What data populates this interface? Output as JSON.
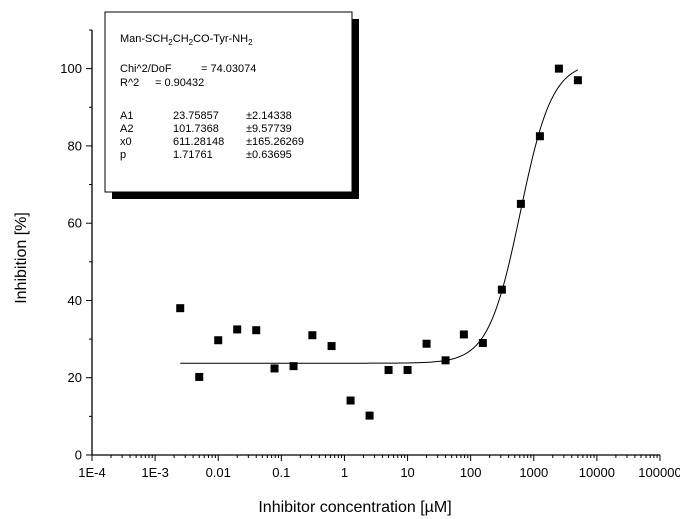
{
  "chart_data": {
    "type": "scatter",
    "x_scale": "log",
    "xlabel": "Inhibitor concentration [µM]",
    "ylabel": "Inhibition [%]",
    "xlim": [
      0.0001,
      100000
    ],
    "ylim": [
      0,
      110
    ],
    "x_ticks": [
      {
        "value": 0.0001,
        "label": "1E-4"
      },
      {
        "value": 0.001,
        "label": "1E-3"
      },
      {
        "value": 0.01,
        "label": "0.01"
      },
      {
        "value": 0.1,
        "label": "0.1"
      },
      {
        "value": 1,
        "label": "1"
      },
      {
        "value": 10,
        "label": "10"
      },
      {
        "value": 100,
        "label": "100"
      },
      {
        "value": 1000,
        "label": "1000"
      },
      {
        "value": 10000,
        "label": "10000"
      },
      {
        "value": 100000,
        "label": "100000"
      }
    ],
    "y_ticks": [
      {
        "value": 0,
        "label": "0"
      },
      {
        "value": 20,
        "label": "20"
      },
      {
        "value": 40,
        "label": "40"
      },
      {
        "value": 60,
        "label": "60"
      },
      {
        "value": 80,
        "label": "80"
      },
      {
        "value": 100,
        "label": "100"
      }
    ],
    "points": [
      {
        "x": 0.0025,
        "y": 38.0
      },
      {
        "x": 0.005,
        "y": 20.2
      },
      {
        "x": 0.01,
        "y": 29.7
      },
      {
        "x": 0.02,
        "y": 32.5
      },
      {
        "x": 0.04,
        "y": 32.3
      },
      {
        "x": 0.078,
        "y": 22.4
      },
      {
        "x": 0.156,
        "y": 23.0
      },
      {
        "x": 0.31,
        "y": 31.0
      },
      {
        "x": 0.625,
        "y": 28.2
      },
      {
        "x": 1.25,
        "y": 14.1
      },
      {
        "x": 2.5,
        "y": 10.2
      },
      {
        "x": 5,
        "y": 22.0
      },
      {
        "x": 10,
        "y": 22.0
      },
      {
        "x": 20,
        "y": 28.8
      },
      {
        "x": 40,
        "y": 24.5
      },
      {
        "x": 78,
        "y": 31.2
      },
      {
        "x": 156,
        "y": 29.0
      },
      {
        "x": 312,
        "y": 42.8
      },
      {
        "x": 625,
        "y": 65.0
      },
      {
        "x": 1250,
        "y": 82.5
      },
      {
        "x": 2500,
        "y": 100.0
      },
      {
        "x": 5000,
        "y": 97.0
      }
    ],
    "fit": {
      "model": "logistic",
      "A1": 23.75857,
      "A2": 101.7368,
      "x0": 611.28148,
      "p": 1.71761,
      "x_range": [
        0.0025,
        5000
      ]
    },
    "legend": {
      "title_parts": [
        {
          "text": "Man-SCH",
          "sub": false
        },
        {
          "text": "2",
          "sub": true
        },
        {
          "text": "CH",
          "sub": false
        },
        {
          "text": "2",
          "sub": true
        },
        {
          "text": "CO-Tyr-NH",
          "sub": false
        },
        {
          "text": "2",
          "sub": true
        }
      ],
      "stats": [
        {
          "name": "Chi^2/DoF",
          "value": "= 74.03074"
        },
        {
          "name": "R^2",
          "value": "= 0.90432"
        }
      ],
      "params": [
        {
          "name": "A1",
          "value": "23.75857",
          "error": "±2.14338"
        },
        {
          "name": "A2",
          "value": "101.7368",
          "error": "±9.57739"
        },
        {
          "name": "x0",
          "value": "611.28148",
          "error": "±165.26269"
        },
        {
          "name": "p",
          "value": "1.71761",
          "error": "±0.63695"
        }
      ]
    }
  }
}
